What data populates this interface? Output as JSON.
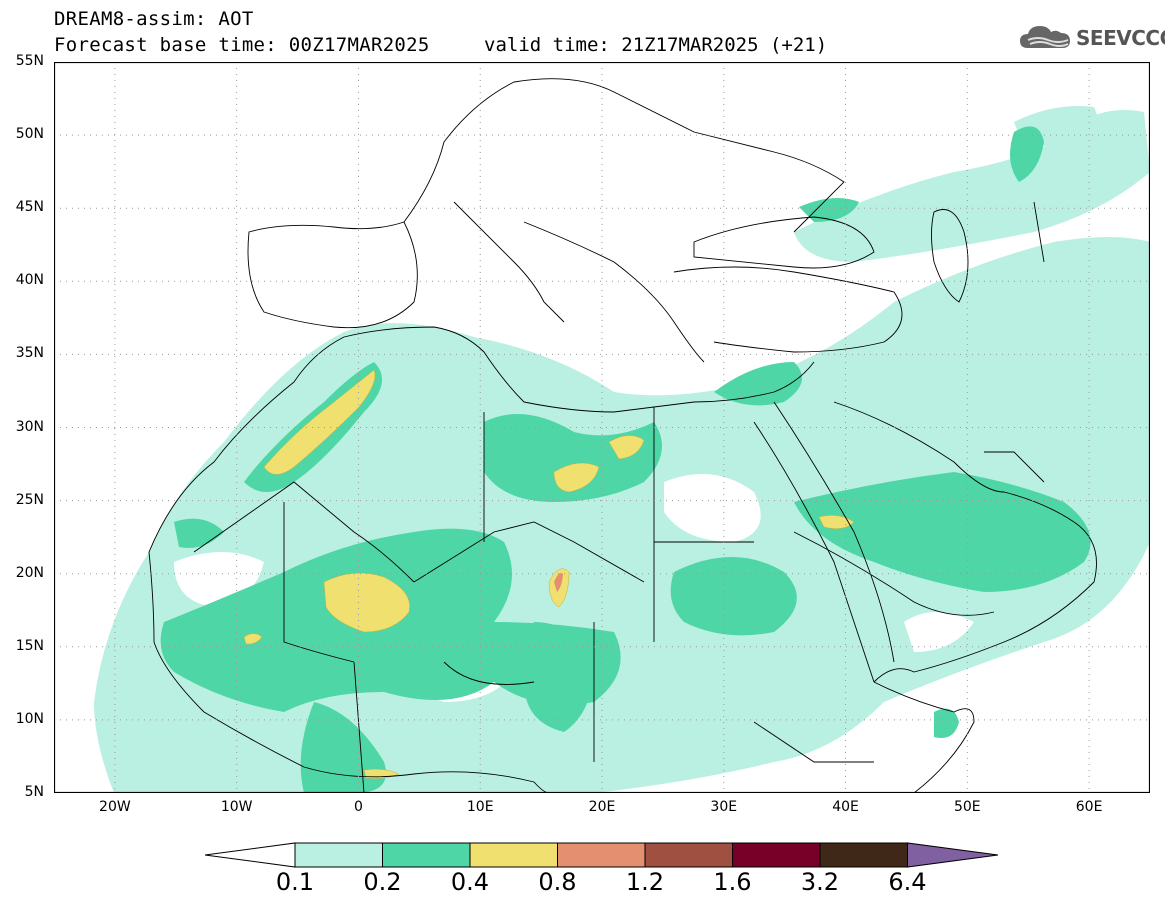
{
  "header": {
    "title_line1": "DREAM8-assim: AOT",
    "title_line2": "Forecast base time: 00Z17MAR2025",
    "valid_time": "valid time: 21Z17MAR2025 (+21)",
    "logo_text": "SEEVCCC"
  },
  "map": {
    "lat_labels": [
      "55N",
      "50N",
      "45N",
      "40N",
      "35N",
      "30N",
      "25N",
      "20N",
      "15N",
      "10N",
      "5N"
    ],
    "lon_labels": [
      "20W",
      "10W",
      "0",
      "10E",
      "20E",
      "30E",
      "40E",
      "50E",
      "60E"
    ],
    "lat_range": [
      5,
      55
    ],
    "lon_range": [
      -25,
      65
    ]
  },
  "colorbar": {
    "labels": [
      "0.1",
      "0.2",
      "0.4",
      "0.8",
      "1.2",
      "1.6",
      "3.2",
      "6.4"
    ],
    "colors": [
      "#b9f0e2",
      "#4fd6a6",
      "#f0e070",
      "#e49070",
      "#a05040",
      "#780028",
      "#402818",
      "#8060a0"
    ]
  }
}
